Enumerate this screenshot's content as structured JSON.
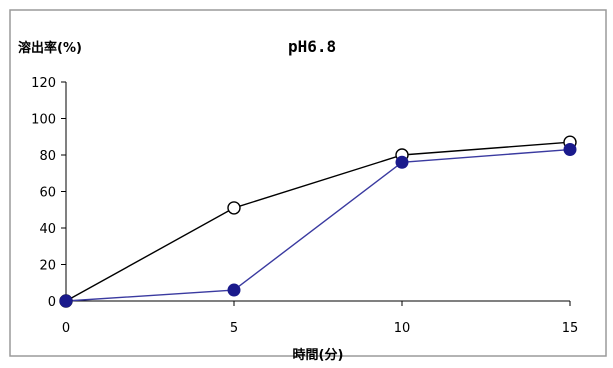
{
  "chart_data": {
    "type": "line",
    "title": "pH6.8",
    "ylabel": "溶出率(%)",
    "xlabel": "時間(分)",
    "x": [
      0,
      5,
      10,
      15
    ],
    "xlim": [
      0,
      15
    ],
    "ylim": [
      0,
      120
    ],
    "x_ticks": [
      "0",
      "5",
      "10",
      "15"
    ],
    "y_ticks": [
      "0",
      "20",
      "40",
      "60",
      "80",
      "100",
      "120"
    ],
    "grid": false,
    "legend": "none",
    "series": [
      {
        "values": [
          0,
          51,
          80,
          87
        ],
        "color": "#000000",
        "marker": "open-circle"
      },
      {
        "values": [
          0,
          6,
          76,
          83
        ],
        "color": "#3a3aa0",
        "marker": "filled-circle",
        "marker_color": "#1a1a8c"
      }
    ]
  }
}
